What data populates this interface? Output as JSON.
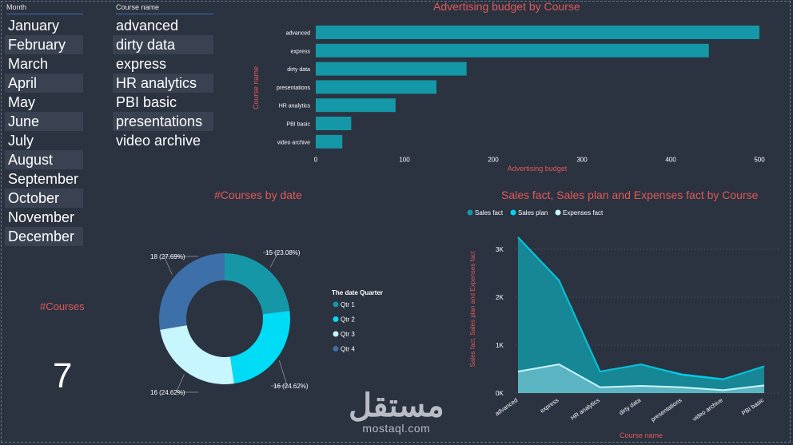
{
  "slicers": {
    "month": {
      "header": "Month",
      "items": [
        "January",
        "February",
        "March",
        "April",
        "May",
        "June",
        "July",
        "August",
        "September",
        "October",
        "November",
        "December"
      ]
    },
    "course": {
      "header": "Course name",
      "items": [
        "advanced",
        "dirty data",
        "express",
        "HR analytics",
        "PBI basic",
        "presentations",
        "video archive"
      ]
    }
  },
  "kpi": {
    "label": "#Courses",
    "value": "7"
  },
  "watermark": {
    "arabic": "مستقل",
    "latin": "mostaql.com"
  },
  "colors": {
    "background": "#2b3240",
    "title": "#e05a5a",
    "bar": "#1497a6",
    "sales_fact": "#1497a6",
    "sales_plan": "#00d4f0",
    "expenses_fact": "#c8f6ff",
    "qtr1": "#1697a7",
    "qtr2": "#00dcf5",
    "qtr3": "#c8f6ff",
    "qtr4": "#3d6fa8"
  },
  "chart_data": [
    {
      "type": "bar",
      "orientation": "horizontal",
      "title": "Advertising budget by Course",
      "xlabel": "Advertising budget",
      "ylabel": "Course name",
      "categories": [
        "advanced",
        "express",
        "dirty data",
        "presentations",
        "HR analytics",
        "PBI basic",
        "video archive"
      ],
      "values": [
        500,
        443,
        170,
        136,
        90,
        40,
        30
      ],
      "xlim": [
        0,
        500
      ],
      "xticks": [
        0,
        100,
        200,
        300,
        400,
        500
      ]
    },
    {
      "type": "pie",
      "variant": "donut",
      "title": "#Courses by date",
      "legend_title": "The date Quarter",
      "legend_position": "right",
      "slices": [
        {
          "name": "Qtr 1",
          "value": 15,
          "label": "15 (23.08%)"
        },
        {
          "name": "Qtr 2",
          "value": 16,
          "label": "16 (24.62%)"
        },
        {
          "name": "Qtr 3",
          "value": 16,
          "label": "16 (24.62%)"
        },
        {
          "name": "Qtr 4",
          "value": 18,
          "label": "18 (27.69%)"
        }
      ]
    },
    {
      "type": "area",
      "title": "Sales fact, Sales plan and Expenses fact by Course",
      "xlabel": "Course name",
      "ylabel": "Sales fact, Sales plan and Expenses fact",
      "legend_position": "top-left",
      "categories": [
        "advanced",
        "express",
        "HR analytics",
        "dirty data",
        "presentations",
        "video archive",
        "PBI basic"
      ],
      "series": [
        {
          "name": "Sales fact",
          "values": [
            3250,
            2350,
            450,
            600,
            400,
            300,
            560
          ]
        },
        {
          "name": "Sales plan",
          "values": [
            3250,
            2350,
            450,
            600,
            380,
            290,
            560
          ]
        },
        {
          "name": "Expenses fact",
          "values": [
            450,
            600,
            120,
            150,
            120,
            60,
            160
          ]
        }
      ],
      "ylim": [
        0,
        3500
      ],
      "yticks": [
        0,
        1000,
        2000,
        3000
      ],
      "ytick_labels": [
        "0K",
        "1K",
        "2K",
        "3K"
      ],
      "grid": true
    }
  ]
}
